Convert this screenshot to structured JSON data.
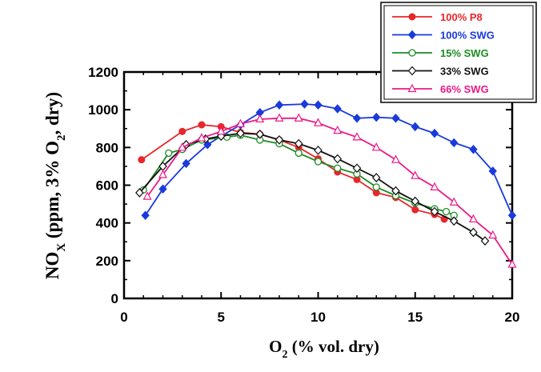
{
  "chart_data": {
    "type": "line",
    "title": "",
    "xlabel": "O2 (% vol. dry)",
    "ylabel": "NOX (ppm, 3% O2, dry)",
    "xlabel_parts": {
      "main": "O",
      "sub": "2",
      "rest": " (% vol. dry)"
    },
    "ylabel_parts": {
      "main": "NO",
      "sub": "X",
      "mid": " (ppm, 3%  O",
      "sub2": "2",
      "rest": ", dry)"
    },
    "xlim": [
      0,
      20
    ],
    "ylim": [
      0,
      1200
    ],
    "xticks": [
      "0",
      "5",
      "10",
      "15",
      "20"
    ],
    "yticks": [
      "0",
      "200",
      "400",
      "600",
      "800",
      "1000",
      "1200"
    ],
    "legend_position": "top-right",
    "series": [
      {
        "name": "100% P8",
        "color": "#e8262b",
        "marker": "filled-circle",
        "x": [
          0.9,
          3.0,
          4.0,
          5.0,
          6.0,
          7.0,
          8.0,
          9.0,
          10.0,
          11.0,
          12.0,
          13.0,
          14.0,
          15.0,
          16.0,
          16.5
        ],
        "y": [
          735,
          885,
          920,
          910,
          880,
          870,
          840,
          800,
          740,
          670,
          630,
          560,
          535,
          470,
          445,
          420
        ]
      },
      {
        "name": "100% SWG",
        "color": "#1a3adb",
        "marker": "filled-diamond",
        "x": [
          1.1,
          2.0,
          3.2,
          4.3,
          5.0,
          6.0,
          7.0,
          8.0,
          9.3,
          10.0,
          11.0,
          12.0,
          13.0,
          14.0,
          15.0,
          16.0,
          17.0,
          18.0,
          19.0,
          20.0
        ],
        "y": [
          440,
          580,
          715,
          815,
          860,
          920,
          985,
          1025,
          1030,
          1025,
          1005,
          955,
          960,
          955,
          910,
          875,
          825,
          790,
          675,
          440
        ]
      },
      {
        "name": "15% SWG",
        "color": "#1c8c23",
        "marker": "open-circle",
        "x": [
          1.0,
          2.3,
          3.0,
          4.0,
          5.3,
          6.0,
          7.0,
          8.0,
          9.0,
          10.0,
          11.0,
          12.0,
          13.0,
          14.0,
          15.0,
          16.0,
          16.6,
          17.0
        ],
        "y": [
          575,
          770,
          790,
          840,
          855,
          865,
          840,
          820,
          770,
          725,
          690,
          660,
          590,
          545,
          505,
          475,
          460,
          440
        ]
      },
      {
        "name": "33% SWG",
        "color": "#111111",
        "marker": "open-diamond",
        "x": [
          0.8,
          2.0,
          3.2,
          4.2,
          5.0,
          6.0,
          7.0,
          8.0,
          9.0,
          10.0,
          11.0,
          12.0,
          13.0,
          14.0,
          15.0,
          16.0,
          17.0,
          18.0,
          18.6
        ],
        "y": [
          560,
          700,
          815,
          845,
          860,
          875,
          870,
          840,
          820,
          785,
          740,
          690,
          640,
          570,
          515,
          460,
          410,
          350,
          305
        ]
      },
      {
        "name": "66% SWG",
        "color": "#ea1a87",
        "marker": "open-triangle",
        "x": [
          1.2,
          2.0,
          3.0,
          4.0,
          5.0,
          6.0,
          7.0,
          8.0,
          9.0,
          10.0,
          11.0,
          12.0,
          13.0,
          14.0,
          15.0,
          16.0,
          17.0,
          18.0,
          19.0,
          20.0
        ],
        "y": [
          540,
          655,
          800,
          850,
          885,
          925,
          950,
          955,
          955,
          930,
          890,
          855,
          800,
          735,
          650,
          590,
          510,
          420,
          335,
          180
        ]
      }
    ]
  }
}
